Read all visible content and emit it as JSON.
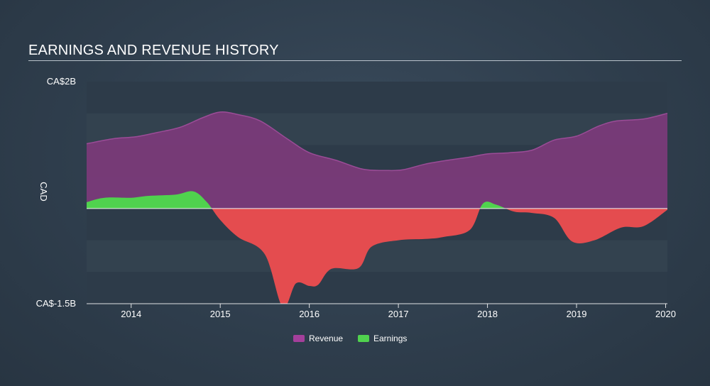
{
  "title": "EARNINGS AND REVENUE HISTORY",
  "colors": {
    "revenue": "#7a3a79",
    "revenue_line": "#9b4c97",
    "revenue_legend": "#a43f9b",
    "earnings_pos": "#50d24e",
    "earnings_neg": "#e44c4f",
    "zero_line": "#f1f1f1",
    "band_dark": "#2d3b49",
    "band_light": "#33424f"
  },
  "legend": [
    {
      "label": "Revenue",
      "color": "#a43f9b"
    },
    {
      "label": "Earnings",
      "color": "#50d24e"
    }
  ],
  "chart_data": {
    "type": "area",
    "ylabel": "CAD",
    "ylim": [
      -1.5,
      2.0
    ],
    "ytick_labels": [
      "CA$2B",
      "CA$-1.5B"
    ],
    "ytick_values": [
      2.0,
      -1.5
    ],
    "xlim": [
      2013.5,
      2020.02
    ],
    "xticks": [
      2014,
      2015,
      2016,
      2017,
      2018,
      2019,
      2020
    ],
    "legend_position": "bottom",
    "grid": "horizontal bands",
    "series": [
      {
        "name": "Revenue",
        "x": [
          2013.5,
          2013.8,
          2014.05,
          2014.3,
          2014.55,
          2014.8,
          2015.0,
          2015.2,
          2015.45,
          2015.75,
          2016.0,
          2016.3,
          2016.6,
          2016.85,
          2017.05,
          2017.3,
          2017.55,
          2017.8,
          2018.0,
          2018.25,
          2018.5,
          2018.75,
          2019.0,
          2019.25,
          2019.45,
          2019.75,
          2020.02
        ],
        "values": [
          1.02,
          1.1,
          1.13,
          1.2,
          1.28,
          1.43,
          1.52,
          1.48,
          1.38,
          1.1,
          0.88,
          0.76,
          0.62,
          0.6,
          0.61,
          0.7,
          0.76,
          0.81,
          0.86,
          0.88,
          0.92,
          1.08,
          1.14,
          1.3,
          1.38,
          1.41,
          1.5
        ]
      },
      {
        "name": "Earnings",
        "x": [
          2013.5,
          2013.7,
          2014.0,
          2014.2,
          2014.5,
          2014.7,
          2014.85,
          2015.0,
          2015.2,
          2015.5,
          2015.7,
          2015.85,
          2016.0,
          2016.1,
          2016.25,
          2016.55,
          2016.7,
          2017.0,
          2017.3,
          2017.5,
          2017.8,
          2017.95,
          2018.1,
          2018.3,
          2018.5,
          2018.75,
          2018.95,
          2019.2,
          2019.5,
          2019.75,
          2020.02
        ],
        "values": [
          0.1,
          0.17,
          0.17,
          0.2,
          0.22,
          0.27,
          0.1,
          -0.18,
          -0.45,
          -0.72,
          -1.55,
          -1.18,
          -1.22,
          -1.2,
          -0.95,
          -0.94,
          -0.6,
          -0.5,
          -0.48,
          -0.45,
          -0.34,
          0.08,
          0.06,
          -0.05,
          -0.07,
          -0.15,
          -0.52,
          -0.5,
          -0.3,
          -0.28,
          -0.02
        ]
      }
    ]
  }
}
